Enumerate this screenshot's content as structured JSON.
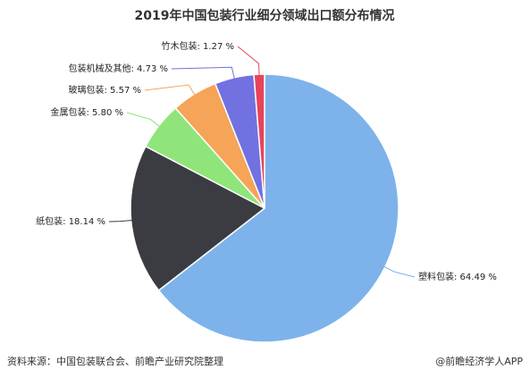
{
  "chart_data": {
    "type": "pie",
    "title": "2019年中国包装行业细分领域出口额分布情况",
    "labels": [
      "塑料包装: 64.49 %",
      "纸包装: 18.14 %",
      "金属包装: 5.80 %",
      "玻璃包装: 5.57 %",
      "包装机械及其他: 4.73 %",
      "竹木包装: 1.27 %"
    ],
    "values": [
      64.49,
      18.14,
      5.8,
      5.57,
      4.73,
      1.27
    ],
    "colors": [
      "#7db3ea",
      "#3b3b42",
      "#8fe57a",
      "#f5a458",
      "#7171e2",
      "#e8435c"
    ],
    "source": "资料来源：中国包装联合会、前瞻产业研究院整理",
    "footer": "@前瞻经济学人APP"
  }
}
